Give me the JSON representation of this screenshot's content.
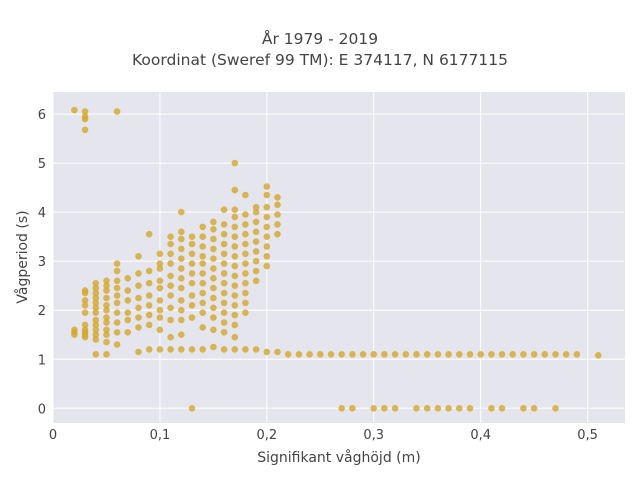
{
  "chart_data": {
    "type": "scatter",
    "title": "År 1979 - 2019",
    "subtitle": "Koordinat (Sweref 99 TM): E 374117, N 6177115",
    "xlabel": "Signifikant våghöjd (m)",
    "ylabel": "Vågperiod (s)",
    "xlim": [
      0,
      0.535
    ],
    "ylim": [
      -0.3,
      6.45
    ],
    "xticks": [
      "0",
      "0,1",
      "0,2",
      "0,3",
      "0,4",
      "0,5"
    ],
    "xtick_values": [
      0,
      0.1,
      0.2,
      0.3,
      0.4,
      0.5
    ],
    "yticks": [
      "0",
      "1",
      "2",
      "3",
      "4",
      "5",
      "6"
    ],
    "ytick_values": [
      0,
      1,
      2,
      3,
      4,
      5,
      6
    ],
    "grid": true,
    "marker_color": "#D4A62A",
    "plot_background": "#E5E5EE",
    "points": [
      [
        0.02,
        6.08
      ],
      [
        0.03,
        6.05
      ],
      [
        0.03,
        5.95
      ],
      [
        0.03,
        5.9
      ],
      [
        0.03,
        5.68
      ],
      [
        0.06,
        6.05
      ],
      [
        0.02,
        1.6
      ],
      [
        0.02,
        1.55
      ],
      [
        0.02,
        1.5
      ],
      [
        0.03,
        1.7
      ],
      [
        0.03,
        1.6
      ],
      [
        0.03,
        1.55
      ],
      [
        0.03,
        1.5
      ],
      [
        0.03,
        1.45
      ],
      [
        0.03,
        1.95
      ],
      [
        0.03,
        2.1
      ],
      [
        0.03,
        2.2
      ],
      [
        0.03,
        2.35
      ],
      [
        0.03,
        2.4
      ],
      [
        0.04,
        1.1
      ],
      [
        0.04,
        1.4
      ],
      [
        0.04,
        1.5
      ],
      [
        0.04,
        1.6
      ],
      [
        0.04,
        1.7
      ],
      [
        0.04,
        1.8
      ],
      [
        0.04,
        1.95
      ],
      [
        0.04,
        2.05
      ],
      [
        0.04,
        2.15
      ],
      [
        0.04,
        2.25
      ],
      [
        0.04,
        2.35
      ],
      [
        0.04,
        2.45
      ],
      [
        0.04,
        2.55
      ],
      [
        0.05,
        1.1
      ],
      [
        0.05,
        1.35
      ],
      [
        0.05,
        1.5
      ],
      [
        0.05,
        1.6
      ],
      [
        0.05,
        1.75
      ],
      [
        0.05,
        1.85
      ],
      [
        0.05,
        2.0
      ],
      [
        0.05,
        2.1
      ],
      [
        0.05,
        2.25
      ],
      [
        0.05,
        2.4
      ],
      [
        0.05,
        2.5
      ],
      [
        0.05,
        2.6
      ],
      [
        0.06,
        1.3
      ],
      [
        0.06,
        1.55
      ],
      [
        0.06,
        1.75
      ],
      [
        0.06,
        1.95
      ],
      [
        0.06,
        2.15
      ],
      [
        0.06,
        2.3
      ],
      [
        0.06,
        2.45
      ],
      [
        0.06,
        2.6
      ],
      [
        0.06,
        2.8
      ],
      [
        0.06,
        2.95
      ],
      [
        0.07,
        1.55
      ],
      [
        0.07,
        1.8
      ],
      [
        0.07,
        1.95
      ],
      [
        0.07,
        2.2
      ],
      [
        0.07,
        2.4
      ],
      [
        0.07,
        2.65
      ],
      [
        0.08,
        1.15
      ],
      [
        0.08,
        1.65
      ],
      [
        0.08,
        1.85
      ],
      [
        0.08,
        2.05
      ],
      [
        0.08,
        2.25
      ],
      [
        0.08,
        2.5
      ],
      [
        0.08,
        2.75
      ],
      [
        0.08,
        3.1
      ],
      [
        0.09,
        1.2
      ],
      [
        0.09,
        1.7
      ],
      [
        0.09,
        1.9
      ],
      [
        0.09,
        2.1
      ],
      [
        0.09,
        2.3
      ],
      [
        0.09,
        2.55
      ],
      [
        0.09,
        2.8
      ],
      [
        0.09,
        3.55
      ],
      [
        0.1,
        1.2
      ],
      [
        0.1,
        1.6
      ],
      [
        0.1,
        1.85
      ],
      [
        0.1,
        2.0
      ],
      [
        0.1,
        2.2
      ],
      [
        0.1,
        2.45
      ],
      [
        0.1,
        2.6
      ],
      [
        0.1,
        2.85
      ],
      [
        0.1,
        2.95
      ],
      [
        0.1,
        3.15
      ],
      [
        0.11,
        1.2
      ],
      [
        0.11,
        1.45
      ],
      [
        0.11,
        1.8
      ],
      [
        0.11,
        2.05
      ],
      [
        0.11,
        2.3
      ],
      [
        0.11,
        2.5
      ],
      [
        0.11,
        2.7
      ],
      [
        0.11,
        2.95
      ],
      [
        0.11,
        3.15
      ],
      [
        0.11,
        3.35
      ],
      [
        0.11,
        3.5
      ],
      [
        0.12,
        1.2
      ],
      [
        0.12,
        1.5
      ],
      [
        0.12,
        1.8
      ],
      [
        0.12,
        2.0
      ],
      [
        0.12,
        2.2
      ],
      [
        0.12,
        2.45
      ],
      [
        0.12,
        2.65
      ],
      [
        0.12,
        2.85
      ],
      [
        0.12,
        3.05
      ],
      [
        0.12,
        3.25
      ],
      [
        0.12,
        3.45
      ],
      [
        0.12,
        3.6
      ],
      [
        0.12,
        4.0
      ],
      [
        0.13,
        0
      ],
      [
        0.13,
        1.2
      ],
      [
        0.13,
        1.85
      ],
      [
        0.13,
        2.1
      ],
      [
        0.13,
        2.3
      ],
      [
        0.13,
        2.55
      ],
      [
        0.13,
        2.75
      ],
      [
        0.13,
        2.95
      ],
      [
        0.13,
        3.15
      ],
      [
        0.13,
        3.35
      ],
      [
        0.13,
        3.5
      ],
      [
        0.14,
        1.2
      ],
      [
        0.14,
        1.65
      ],
      [
        0.14,
        1.95
      ],
      [
        0.14,
        2.15
      ],
      [
        0.14,
        2.35
      ],
      [
        0.14,
        2.55
      ],
      [
        0.14,
        2.75
      ],
      [
        0.14,
        2.95
      ],
      [
        0.14,
        3.1
      ],
      [
        0.14,
        3.3
      ],
      [
        0.14,
        3.5
      ],
      [
        0.14,
        3.7
      ],
      [
        0.15,
        1.25
      ],
      [
        0.15,
        1.6
      ],
      [
        0.15,
        1.85
      ],
      [
        0.15,
        2.05
      ],
      [
        0.15,
        2.25
      ],
      [
        0.15,
        2.45
      ],
      [
        0.15,
        2.65
      ],
      [
        0.15,
        2.85
      ],
      [
        0.15,
        3.05
      ],
      [
        0.15,
        3.25
      ],
      [
        0.15,
        3.45
      ],
      [
        0.15,
        3.65
      ],
      [
        0.15,
        3.8
      ],
      [
        0.16,
        1.2
      ],
      [
        0.16,
        1.55
      ],
      [
        0.16,
        1.75
      ],
      [
        0.16,
        1.95
      ],
      [
        0.16,
        2.15
      ],
      [
        0.16,
        2.35
      ],
      [
        0.16,
        2.55
      ],
      [
        0.16,
        2.75
      ],
      [
        0.16,
        2.95
      ],
      [
        0.16,
        3.15
      ],
      [
        0.16,
        3.35
      ],
      [
        0.16,
        3.55
      ],
      [
        0.16,
        3.75
      ],
      [
        0.16,
        4.05
      ],
      [
        0.17,
        1.2
      ],
      [
        0.17,
        1.45
      ],
      [
        0.17,
        1.7
      ],
      [
        0.17,
        1.9
      ],
      [
        0.17,
        2.1
      ],
      [
        0.17,
        2.3
      ],
      [
        0.17,
        2.5
      ],
      [
        0.17,
        2.7
      ],
      [
        0.17,
        2.9
      ],
      [
        0.17,
        3.1
      ],
      [
        0.17,
        3.3
      ],
      [
        0.17,
        3.5
      ],
      [
        0.17,
        3.7
      ],
      [
        0.17,
        3.9
      ],
      [
        0.17,
        4.05
      ],
      [
        0.17,
        4.45
      ],
      [
        0.17,
        5.0
      ],
      [
        0.18,
        1.2
      ],
      [
        0.18,
        1.95
      ],
      [
        0.18,
        2.15
      ],
      [
        0.18,
        2.35
      ],
      [
        0.18,
        2.55
      ],
      [
        0.18,
        2.75
      ],
      [
        0.18,
        2.95
      ],
      [
        0.18,
        3.15
      ],
      [
        0.18,
        3.35
      ],
      [
        0.18,
        3.55
      ],
      [
        0.18,
        3.75
      ],
      [
        0.18,
        3.95
      ],
      [
        0.18,
        4.35
      ],
      [
        0.19,
        1.2
      ],
      [
        0.19,
        2.6
      ],
      [
        0.19,
        2.8
      ],
      [
        0.19,
        3.0
      ],
      [
        0.19,
        3.2
      ],
      [
        0.19,
        3.4
      ],
      [
        0.19,
        3.6
      ],
      [
        0.19,
        3.8
      ],
      [
        0.19,
        4.0
      ],
      [
        0.19,
        4.1
      ],
      [
        0.2,
        1.15
      ],
      [
        0.2,
        2.9
      ],
      [
        0.2,
        3.1
      ],
      [
        0.2,
        3.3
      ],
      [
        0.2,
        3.5
      ],
      [
        0.2,
        3.7
      ],
      [
        0.2,
        3.9
      ],
      [
        0.2,
        4.1
      ],
      [
        0.2,
        4.35
      ],
      [
        0.2,
        4.52
      ],
      [
        0.21,
        1.15
      ],
      [
        0.21,
        3.55
      ],
      [
        0.21,
        3.75
      ],
      [
        0.21,
        3.95
      ],
      [
        0.21,
        4.15
      ],
      [
        0.21,
        4.3
      ],
      [
        0.22,
        1.1
      ],
      [
        0.23,
        1.1
      ],
      [
        0.24,
        1.1
      ],
      [
        0.25,
        1.1
      ],
      [
        0.26,
        1.1
      ],
      [
        0.27,
        1.1
      ],
      [
        0.28,
        1.1
      ],
      [
        0.29,
        1.1
      ],
      [
        0.3,
        1.1
      ],
      [
        0.31,
        1.1
      ],
      [
        0.32,
        1.1
      ],
      [
        0.33,
        1.1
      ],
      [
        0.34,
        1.1
      ],
      [
        0.35,
        1.1
      ],
      [
        0.36,
        1.1
      ],
      [
        0.37,
        1.1
      ],
      [
        0.38,
        1.1
      ],
      [
        0.39,
        1.1
      ],
      [
        0.4,
        1.1
      ],
      [
        0.41,
        1.1
      ],
      [
        0.42,
        1.1
      ],
      [
        0.43,
        1.1
      ],
      [
        0.44,
        1.1
      ],
      [
        0.45,
        1.1
      ],
      [
        0.46,
        1.1
      ],
      [
        0.47,
        1.1
      ],
      [
        0.48,
        1.1
      ],
      [
        0.49,
        1.1
      ],
      [
        0.51,
        1.08
      ],
      [
        0.27,
        0
      ],
      [
        0.28,
        0
      ],
      [
        0.3,
        0
      ],
      [
        0.31,
        0
      ],
      [
        0.32,
        0
      ],
      [
        0.34,
        0
      ],
      [
        0.35,
        0
      ],
      [
        0.36,
        0
      ],
      [
        0.37,
        0
      ],
      [
        0.38,
        0
      ],
      [
        0.39,
        0
      ],
      [
        0.41,
        0
      ],
      [
        0.42,
        0
      ],
      [
        0.44,
        0
      ],
      [
        0.45,
        0
      ],
      [
        0.47,
        0
      ]
    ]
  }
}
